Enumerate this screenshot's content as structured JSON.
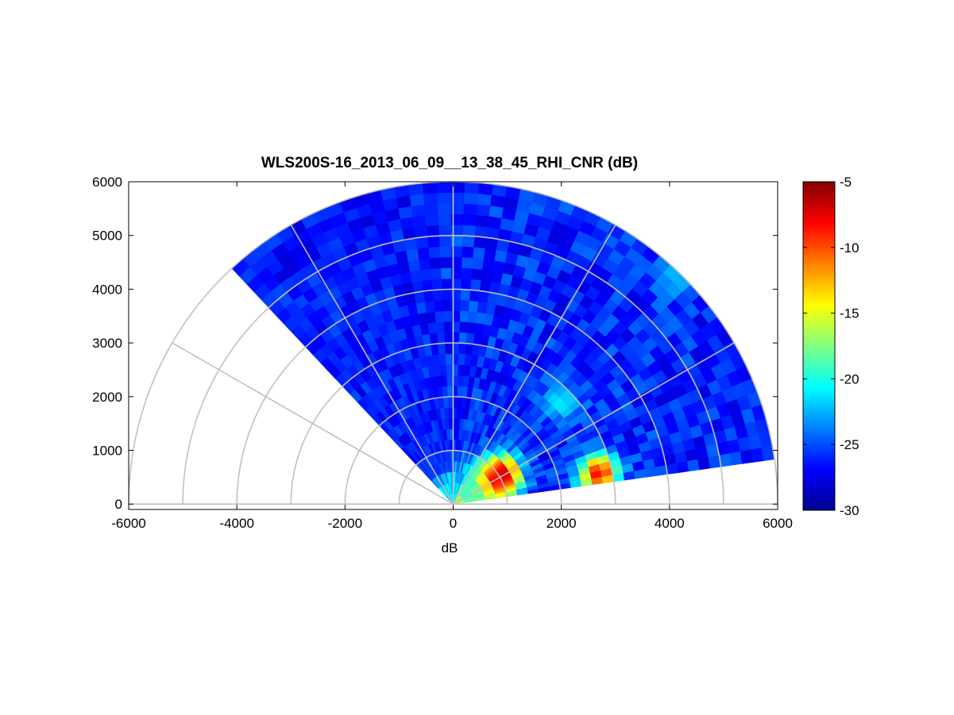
{
  "chart_data": {
    "type": "heatmap",
    "title": "WLS200S-16_2013_06_09__13_38_45_RHI_CNR (dB)",
    "xlabel": "dB",
    "ylabel": "",
    "xlim": [
      -6000,
      6000
    ],
    "ylim": [
      -100,
      6000
    ],
    "x_ticks": [
      "-6000",
      "-4000",
      "-2000",
      "0",
      "2000",
      "4000",
      "6000"
    ],
    "y_ticks": [
      "0",
      "1000",
      "2000",
      "3000",
      "4000",
      "5000",
      "6000"
    ],
    "polar_grid": {
      "range_rings": [
        1000,
        2000,
        3000,
        4000,
        5000,
        6000
      ],
      "angle_spokes_deg": [
        0,
        30,
        60,
        90,
        120,
        150,
        180
      ]
    },
    "scan": {
      "elevation_start_deg": 8,
      "elevation_end_deg": 133,
      "max_range": 6000,
      "background_dB": -26
    },
    "hotspots": [
      {
        "x": 800,
        "y": 400,
        "value_dB": -15
      },
      {
        "x": 900,
        "y": 550,
        "value_dB": -7
      },
      {
        "x": 2700,
        "y": 580,
        "value_dB": -8
      },
      {
        "x": 2000,
        "y": 1900,
        "value_dB": -21
      },
      {
        "x": 4100,
        "y": 4200,
        "value_dB": -22
      }
    ],
    "colorbar": {
      "colormap": "jet",
      "range": [
        -30,
        -5
      ],
      "ticks": [
        "-5",
        "-10",
        "-15",
        "-20",
        "-25",
        "-30"
      ]
    }
  }
}
